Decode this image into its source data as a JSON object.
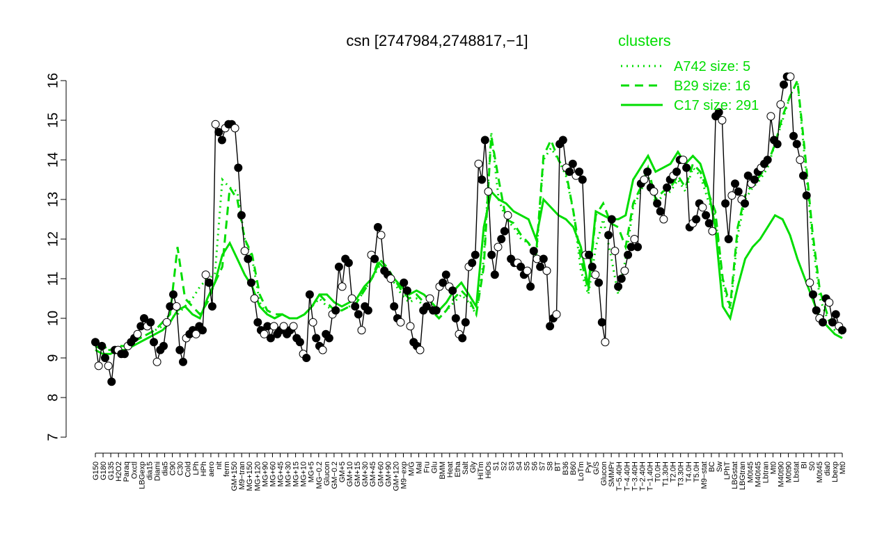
{
  "chart_data": {
    "type": "line",
    "title": "csn [2747984,2748817,−1]",
    "ylim": [
      7,
      16
    ],
    "yticks": [
      7,
      8,
      9,
      10,
      11,
      12,
      13,
      14,
      15,
      16
    ],
    "grid": false,
    "legend": {
      "title": "clusters",
      "position": "top-right",
      "entries": [
        {
          "label": "A742 size: 5",
          "style": "dotted",
          "color": "#00dd00"
        },
        {
          "label": "B29 size: 16",
          "style": "dashed",
          "color": "#00dd00"
        },
        {
          "label": "C17 size: 291",
          "style": "solid",
          "color": "#00dd00"
        }
      ]
    },
    "x_tick_labels": [
      "G150",
      "G180",
      "G135",
      "H2O2",
      "Paraq",
      "Oxctl",
      "LBGexp",
      "dia15",
      "Diami",
      "dia5",
      "C90",
      "C30",
      "Cold",
      "LPh",
      "HPh",
      "aero",
      "nit",
      "ferm",
      "GM+150",
      "M9−tran",
      "MG+150",
      "MG+120",
      "MG+90",
      "MG+60",
      "MG+45",
      "MG+30",
      "MG+15",
      "MG+10",
      "MG+5",
      "MG−0.2",
      "Glucon",
      "GM−0.2",
      "GM+5",
      "GM+10",
      "GM+15",
      "GM+30",
      "GM+45",
      "GM+60",
      "GM+90",
      "GM+120",
      "M9−exp",
      "M/G",
      "Mal",
      "Fru",
      "Glu",
      "BMM",
      "Heat",
      "Etha",
      "Salt",
      "Gly",
      "HiTm",
      "HiOs",
      "S1",
      "S2",
      "S3",
      "S4",
      "S5",
      "S6",
      "S7",
      "S8",
      "BT",
      "B36",
      "B60",
      "LoTm",
      "Pyr",
      "G/S",
      "Glucon",
      "SMMPr",
      "T−5.40H",
      "T−4.40H",
      "T−3.40H",
      "T−2.40H",
      "T−1.40H",
      "T0.0H",
      "T1.30H",
      "T2.0H",
      "T3.30H",
      "T4.0H",
      "T5.0H",
      "M9−stat",
      "BC",
      "Sw",
      "LPhT",
      "LBGstat",
      "LBGtran",
      "M0t45",
      "M40t45",
      "Lbtran",
      "Mt0",
      "M40t90",
      "M0t90",
      "Lbstat",
      "BI",
      "S0",
      "M0t45",
      "dia0",
      "Lbexp",
      "Mt0"
    ],
    "series": [
      {
        "name": "",
        "style": "points-line",
        "values": [
          9.4,
          8.8,
          9.3,
          9.0,
          8.8,
          8.4,
          9.2,
          9.2,
          9.1,
          9.1,
          9.3,
          9.4,
          9.5,
          9.6,
          9.8,
          10.0,
          9.8,
          9.9,
          9.4,
          8.9,
          9.2,
          9.3,
          9.9,
          10.3,
          10.6,
          10.3,
          9.2,
          8.9,
          9.5,
          9.6,
          9.7,
          9.6,
          9.8,
          9.7,
          11.1,
          10.9,
          10.3,
          14.9,
          14.7,
          14.5,
          14.8,
          14.9,
          14.9,
          14.8,
          13.8,
          12.6,
          11.7,
          11.5,
          10.9,
          10.5,
          9.9,
          9.7,
          9.6,
          9.8,
          9.5,
          9.8,
          9.6,
          9.7,
          9.8,
          9.6,
          9.7,
          9.8,
          9.5,
          9.4,
          9.1,
          9.0,
          10.6,
          9.9,
          9.5,
          9.3,
          9.2,
          9.6,
          9.5,
          10.1,
          10.2,
          11.3,
          10.8,
          11.5,
          11.4,
          10.5,
          10.3,
          10.1,
          9.7,
          10.3,
          10.2,
          11.6,
          11.5,
          12.3,
          12.1,
          11.2,
          11.1,
          11.0,
          10.3,
          10.0,
          9.9,
          10.9,
          10.7,
          9.8,
          9.4,
          9.3,
          9.2,
          10.2,
          10.3,
          10.5,
          10.2,
          10.2,
          10.8,
          10.9,
          11.1,
          10.8,
          10.7,
          10.0,
          9.6,
          9.5,
          9.9,
          11.3,
          11.4,
          11.6,
          13.9,
          13.5,
          14.5,
          13.2,
          11.6,
          11.1,
          11.8,
          12.0,
          12.2,
          12.6,
          11.5,
          11.4,
          11.4,
          11.3,
          11.1,
          11.2,
          10.8,
          11.7,
          11.5,
          11.3,
          11.5,
          11.2,
          9.8,
          10.0,
          10.1,
          14.4,
          14.5,
          13.8,
          13.7,
          13.9,
          13.6,
          13.7,
          13.5,
          11.6,
          11.6,
          11.3,
          11.1,
          10.9,
          9.9,
          9.4,
          12.1,
          12.5,
          11.7,
          10.8,
          11.0,
          11.2,
          11.6,
          11.8,
          12.0,
          11.8,
          13.4,
          13.5,
          13.7,
          13.3,
          13.2,
          12.9,
          12.7,
          12.5,
          13.3,
          13.5,
          13.6,
          13.7,
          14.0,
          14.0,
          13.8,
          12.3,
          12.4,
          12.5,
          12.9,
          12.8,
          12.6,
          12.4,
          12.2,
          15.1,
          15.2,
          15.0,
          12.9,
          12.0,
          13.1,
          13.4,
          13.2,
          13.0,
          12.9,
          13.6,
          13.4,
          13.5,
          13.7,
          13.8,
          13.9,
          14.0,
          15.1,
          14.5,
          14.4,
          15.4,
          15.9,
          16.1,
          16.1,
          14.6,
          14.4,
          14.0,
          13.6,
          13.1,
          10.9,
          10.6,
          10.2,
          10.0,
          9.9,
          10.5,
          10.4,
          9.9,
          10.1,
          9.8,
          9.7
        ]
      },
      {
        "name": "A742 size: 5",
        "style": "dotted",
        "values": [
          9.4,
          9.3,
          9.2,
          9.3,
          9.3,
          9.4,
          9.5,
          9.6,
          9.7,
          9.8,
          10.0,
          10.1,
          10.3,
          10.5,
          10.8,
          11.0,
          11.1,
          13.5,
          13.3,
          13.2,
          12.0,
          11.5,
          10.4,
          10.1,
          10.0,
          10.1,
          10.0,
          10.0,
          10.1,
          10.3,
          10.5,
          10.3,
          10.2,
          10.2,
          10.3,
          10.4,
          10.7,
          11.0,
          11.3,
          11.1,
          10.9,
          10.6,
          10.4,
          10.5,
          10.3,
          10.2,
          10.0,
          10.2,
          10.4,
          10.6,
          10.4,
          10.1,
          11.5,
          14.7,
          13.0,
          12.5,
          12.3,
          12.0,
          11.9,
          11.5,
          14.0,
          14.3,
          14.0,
          13.6,
          12.7,
          11.2,
          10.6,
          11.8,
          12.5,
          11.6,
          10.6,
          11.5,
          12.8,
          13.2,
          13.6,
          12.9,
          13.1,
          13.2,
          13.5,
          13.2,
          13.8,
          13.6,
          13.0,
          12.6,
          10.9,
          10.2,
          12.1,
          13.0,
          13.3,
          13.5,
          13.8,
          14.4,
          15.0,
          15.6,
          16.0,
          14.0,
          12.0,
          10.5,
          10.0,
          9.7,
          9.6
        ]
      },
      {
        "name": "B29 size: 16",
        "style": "dashed",
        "values": [
          9.3,
          9.2,
          9.2,
          9.3,
          9.3,
          9.4,
          9.5,
          9.6,
          9.7,
          9.9,
          10.1,
          11.8,
          10.5,
          10.3,
          10.1,
          10.4,
          10.9,
          11.3,
          13.3,
          13.0,
          12.0,
          11.6,
          10.6,
          10.2,
          10.1,
          10.1,
          10.0,
          10.0,
          10.1,
          10.3,
          10.6,
          10.4,
          10.2,
          10.2,
          10.3,
          10.4,
          10.7,
          11.0,
          11.5,
          11.3,
          11.0,
          10.7,
          10.5,
          10.6,
          10.4,
          10.2,
          10.0,
          10.2,
          10.5,
          10.7,
          10.5,
          10.1,
          11.3,
          14.6,
          13.5,
          12.5,
          12.4,
          12.1,
          11.9,
          11.6,
          14.1,
          14.5,
          14.0,
          13.7,
          12.7,
          11.5,
          10.7,
          12.6,
          12.9,
          12.4,
          12.3,
          11.8,
          12.9,
          13.3,
          13.8,
          13.0,
          13.2,
          13.3,
          13.6,
          13.3,
          13.9,
          13.7,
          13.2,
          12.7,
          11.0,
          10.3,
          12.3,
          13.1,
          13.4,
          13.6,
          13.9,
          14.4,
          15.1,
          15.6,
          16.0,
          14.2,
          12.2,
          10.7,
          10.1,
          9.8,
          9.6
        ]
      },
      {
        "name": "C17 size: 291",
        "style": "solid",
        "values": [
          9.2,
          9.1,
          9.1,
          9.2,
          9.2,
          9.3,
          9.4,
          9.5,
          9.6,
          9.7,
          9.9,
          10.2,
          10.3,
          10.1,
          10.0,
          10.5,
          10.9,
          11.6,
          11.9,
          11.5,
          11.1,
          10.8,
          10.3,
          10.1,
          10.0,
          10.1,
          10.0,
          10.0,
          10.1,
          10.3,
          10.6,
          10.6,
          10.4,
          10.3,
          10.4,
          10.5,
          10.8,
          11.0,
          11.4,
          11.2,
          11.0,
          10.8,
          10.6,
          10.7,
          10.6,
          10.4,
          10.2,
          10.4,
          10.7,
          10.9,
          10.6,
          10.3,
          12.3,
          13.2,
          13.0,
          12.9,
          12.7,
          12.6,
          12.5,
          12.0,
          13.0,
          12.8,
          12.6,
          12.5,
          12.3,
          11.8,
          10.8,
          12.7,
          12.6,
          12.5,
          12.5,
          12.6,
          13.5,
          13.8,
          14.1,
          13.7,
          13.8,
          13.9,
          14.2,
          13.9,
          14.1,
          13.9,
          13.3,
          12.3,
          10.3,
          10.0,
          10.8,
          11.5,
          11.8,
          12.0,
          12.3,
          12.6,
          12.5,
          12.1,
          11.5,
          11.0,
          10.5,
          10.0,
          9.8,
          9.6,
          9.5
        ]
      }
    ]
  }
}
